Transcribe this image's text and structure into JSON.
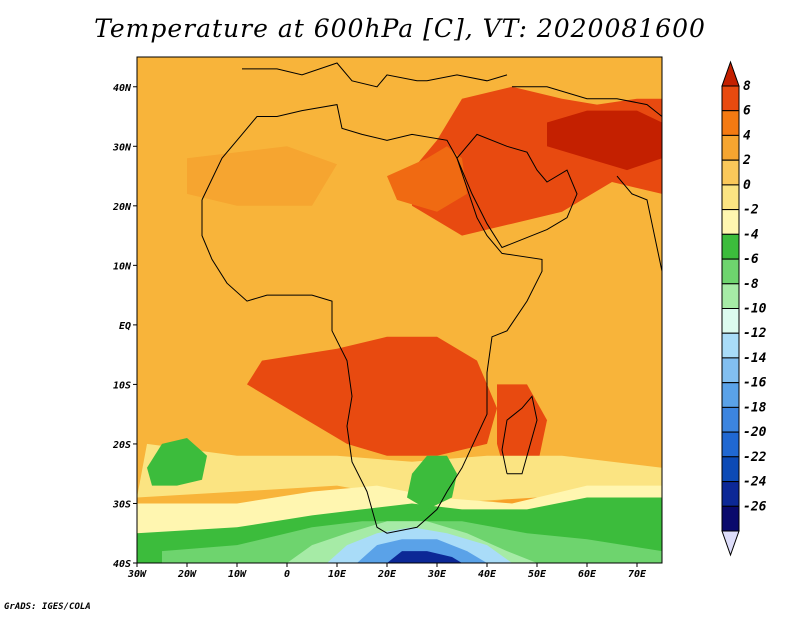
{
  "title": "Temperature at 600hPa [C], VT: 2020081600",
  "credit": "GrADS: IGES/COLA",
  "chart_data": {
    "type": "heatmap",
    "variable": "Temperature",
    "level": "600hPa",
    "units": "C",
    "valid_time": "2020081600",
    "xlim": [
      -30,
      75
    ],
    "ylim": [
      -40,
      45
    ],
    "x_ticks": [
      {
        "value": -30,
        "label": "30W"
      },
      {
        "value": -20,
        "label": "20W"
      },
      {
        "value": -10,
        "label": "10W"
      },
      {
        "value": 0,
        "label": "0"
      },
      {
        "value": 10,
        "label": "10E"
      },
      {
        "value": 20,
        "label": "20E"
      },
      {
        "value": 30,
        "label": "30E"
      },
      {
        "value": 40,
        "label": "40E"
      },
      {
        "value": 50,
        "label": "50E"
      },
      {
        "value": 60,
        "label": "60E"
      },
      {
        "value": 70,
        "label": "70E"
      }
    ],
    "y_ticks": [
      {
        "value": 40,
        "label": "40N"
      },
      {
        "value": 30,
        "label": "30N"
      },
      {
        "value": 20,
        "label": "20N"
      },
      {
        "value": 10,
        "label": "10N"
      },
      {
        "value": 0,
        "label": "EQ"
      },
      {
        "value": -10,
        "label": "10S"
      },
      {
        "value": -20,
        "label": "20S"
      },
      {
        "value": -30,
        "label": "30S"
      },
      {
        "value": -40,
        "label": "40S"
      }
    ],
    "colorbar": {
      "labels": [
        "8",
        "6",
        "4",
        "2",
        "0",
        "-2",
        "-4",
        "-6",
        "-8",
        "-10",
        "-12",
        "-14",
        "-16",
        "-18",
        "-20",
        "-22",
        "-24",
        "-26"
      ],
      "colors": [
        "#c42000",
        "#e84a10",
        "#f47a12",
        "#f6a530",
        "#fac85a",
        "#fbe482",
        "#fff6b0",
        "#3cbc3c",
        "#6ed46e",
        "#a6eba6",
        "#dcfbef",
        "#a9dcf8",
        "#82bff0",
        "#5aa2e8",
        "#3c85e0",
        "#2068d2",
        "#0c4ab6",
        "#0c2896",
        "#0a0a6c",
        "#ddddfa"
      ]
    },
    "regions": [
      {
        "name": "background-warm",
        "value": 3,
        "polygon": [
          [
            -30,
            45
          ],
          [
            75,
            45
          ],
          [
            75,
            -29
          ],
          [
            55,
            -27
          ],
          [
            40,
            -30
          ],
          [
            30,
            -31
          ],
          [
            20,
            -29
          ],
          [
            10,
            -29
          ],
          [
            -5,
            -32
          ],
          [
            -30,
            -33
          ]
        ]
      },
      {
        "name": "northeast-hot",
        "value": 6,
        "polygon": [
          [
            35,
            38
          ],
          [
            45,
            40
          ],
          [
            55,
            38
          ],
          [
            62,
            37
          ],
          [
            70,
            38
          ],
          [
            75,
            38
          ],
          [
            75,
            22
          ],
          [
            65,
            24
          ],
          [
            55,
            19
          ],
          [
            45,
            17
          ],
          [
            35,
            15
          ],
          [
            25,
            20
          ],
          [
            25,
            26
          ],
          [
            30,
            31
          ],
          [
            35,
            38
          ]
        ]
      },
      {
        "name": "northeast-core",
        "value": 7,
        "polygon": [
          [
            52,
            34
          ],
          [
            60,
            36
          ],
          [
            70,
            36
          ],
          [
            75,
            34
          ],
          [
            75,
            28
          ],
          [
            68,
            26
          ],
          [
            60,
            28
          ],
          [
            52,
            30
          ]
        ]
      },
      {
        "name": "sahara-warm",
        "value": 5,
        "polygon": [
          [
            20,
            25
          ],
          [
            28,
            28
          ],
          [
            32,
            30
          ],
          [
            35,
            28
          ],
          [
            36,
            22
          ],
          [
            30,
            19
          ],
          [
            22,
            21
          ]
        ]
      },
      {
        "name": "west-africa-warm",
        "value": 4,
        "polygon": [
          [
            -20,
            28
          ],
          [
            0,
            30
          ],
          [
            10,
            27
          ],
          [
            5,
            20
          ],
          [
            -10,
            20
          ],
          [
            -20,
            22
          ]
        ]
      },
      {
        "name": "south-central-hot",
        "value": 6,
        "polygon": [
          [
            -5,
            -6
          ],
          [
            10,
            -4
          ],
          [
            20,
            -2
          ],
          [
            30,
            -2
          ],
          [
            38,
            -6
          ],
          [
            42,
            -14
          ],
          [
            40,
            -20
          ],
          [
            30,
            -22
          ],
          [
            20,
            -22
          ],
          [
            12,
            -20
          ],
          [
            0,
            -14
          ],
          [
            -8,
            -10
          ]
        ]
      },
      {
        "name": "madagascar-hot",
        "value": 6,
        "polygon": [
          [
            42,
            -10
          ],
          [
            48,
            -10
          ],
          [
            52,
            -16
          ],
          [
            50,
            -24
          ],
          [
            44,
            -26
          ],
          [
            42,
            -20
          ]
        ]
      },
      {
        "name": "southern-mild",
        "value": -1,
        "polygon": [
          [
            -28,
            -20
          ],
          [
            -10,
            -22
          ],
          [
            10,
            -22
          ],
          [
            25,
            -23
          ],
          [
            40,
            -22
          ],
          [
            55,
            -22
          ],
          [
            75,
            -24
          ],
          [
            75,
            -30
          ],
          [
            50,
            -29
          ],
          [
            30,
            -30
          ],
          [
            10,
            -27
          ],
          [
            -10,
            -28
          ],
          [
            -30,
            -29
          ]
        ]
      },
      {
        "name": "south-cool",
        "value": -3,
        "polygon": [
          [
            -30,
            -30
          ],
          [
            -10,
            -30
          ],
          [
            5,
            -28
          ],
          [
            18,
            -27
          ],
          [
            30,
            -29
          ],
          [
            45,
            -30
          ],
          [
            60,
            -27
          ],
          [
            75,
            -27
          ],
          [
            75,
            -34
          ],
          [
            60,
            -33
          ],
          [
            45,
            -34
          ],
          [
            30,
            -33
          ],
          [
            20,
            -33
          ],
          [
            5,
            -34
          ],
          [
            -10,
            -35
          ],
          [
            -30,
            -35
          ]
        ]
      },
      {
        "name": "south-green",
        "value": -6,
        "polygon": [
          [
            -30,
            -35
          ],
          [
            -10,
            -34
          ],
          [
            5,
            -32
          ],
          [
            15,
            -31
          ],
          [
            25,
            -30
          ],
          [
            35,
            -31
          ],
          [
            48,
            -31
          ],
          [
            60,
            -29
          ],
          [
            75,
            -29
          ],
          [
            75,
            -40
          ],
          [
            -30,
            -40
          ]
        ]
      },
      {
        "name": "south-lightgreen",
        "value": -8,
        "polygon": [
          [
            -25,
            -38
          ],
          [
            -10,
            -37
          ],
          [
            5,
            -34
          ],
          [
            15,
            -33
          ],
          [
            25,
            -33
          ],
          [
            35,
            -33
          ],
          [
            48,
            -35
          ],
          [
            60,
            -36
          ],
          [
            75,
            -38
          ],
          [
            75,
            -40
          ],
          [
            -25,
            -40
          ]
        ]
      },
      {
        "name": "south-pale",
        "value": -10,
        "polygon": [
          [
            0,
            -40
          ],
          [
            5,
            -37
          ],
          [
            12,
            -35
          ],
          [
            20,
            -33
          ],
          [
            28,
            -33
          ],
          [
            36,
            -35
          ],
          [
            44,
            -38
          ],
          [
            50,
            -40
          ]
        ]
      },
      {
        "name": "south-lightblue",
        "value": -13,
        "polygon": [
          [
            8,
            -40
          ],
          [
            12,
            -37
          ],
          [
            18,
            -35
          ],
          [
            25,
            -34
          ],
          [
            32,
            -35
          ],
          [
            40,
            -37
          ],
          [
            45,
            -40
          ]
        ]
      },
      {
        "name": "south-blue",
        "value": -17,
        "polygon": [
          [
            14,
            -40
          ],
          [
            18,
            -37
          ],
          [
            23,
            -36
          ],
          [
            30,
            -36
          ],
          [
            36,
            -38
          ],
          [
            40,
            -40
          ]
        ]
      },
      {
        "name": "south-deepblue",
        "value": -22,
        "polygon": [
          [
            20,
            -40
          ],
          [
            23,
            -38
          ],
          [
            28,
            -38
          ],
          [
            33,
            -39
          ],
          [
            35,
            -40
          ]
        ]
      },
      {
        "name": "southatlantic-green-blob",
        "value": -5,
        "polygon": [
          [
            -28,
            -24
          ],
          [
            -25,
            -20
          ],
          [
            -20,
            -19
          ],
          [
            -16,
            -22
          ],
          [
            -17,
            -26
          ],
          [
            -22,
            -27
          ],
          [
            -27,
            -27
          ]
        ]
      },
      {
        "name": "south-africa-green-blob",
        "value": -5,
        "polygon": [
          [
            25,
            -25
          ],
          [
            28,
            -22
          ],
          [
            32,
            -22
          ],
          [
            34,
            -25
          ],
          [
            33,
            -29
          ],
          [
            28,
            -31
          ],
          [
            24,
            -29
          ]
        ]
      }
    ],
    "boundaries": [
      {
        "name": "africa-coast",
        "path": [
          [
            -17,
            21
          ],
          [
            -13,
            28
          ],
          [
            -9,
            32
          ],
          [
            -6,
            35
          ],
          [
            -2,
            35
          ],
          [
            3,
            36
          ],
          [
            10,
            37
          ],
          [
            11,
            33
          ],
          [
            15,
            32
          ],
          [
            20,
            31
          ],
          [
            25,
            32
          ],
          [
            32,
            31
          ],
          [
            34,
            28
          ],
          [
            36,
            23
          ],
          [
            38,
            18
          ],
          [
            40,
            15
          ],
          [
            43,
            12
          ],
          [
            51,
            11
          ],
          [
            51,
            9
          ],
          [
            48,
            4
          ],
          [
            44,
            -1
          ],
          [
            41,
            -2
          ],
          [
            40,
            -8
          ],
          [
            40,
            -15
          ],
          [
            35,
            -24
          ],
          [
            32,
            -28
          ],
          [
            30,
            -31
          ],
          [
            26,
            -34
          ],
          [
            20,
            -35
          ],
          [
            18,
            -34
          ],
          [
            16,
            -28
          ],
          [
            13,
            -23
          ],
          [
            12,
            -17
          ],
          [
            13,
            -12
          ],
          [
            12,
            -6
          ],
          [
            9,
            -1
          ],
          [
            9,
            4
          ],
          [
            5,
            5
          ],
          [
            0,
            5
          ],
          [
            -4,
            5
          ],
          [
            -8,
            4
          ],
          [
            -12,
            7
          ],
          [
            -15,
            11
          ],
          [
            -17,
            15
          ],
          [
            -17,
            21
          ]
        ]
      },
      {
        "name": "madagascar",
        "path": [
          [
            44,
            -25
          ],
          [
            47,
            -25
          ],
          [
            50,
            -16
          ],
          [
            49,
            -12
          ],
          [
            47,
            -14
          ],
          [
            44,
            -16
          ],
          [
            43,
            -21
          ],
          [
            44,
            -25
          ]
        ]
      },
      {
        "name": "arabia",
        "path": [
          [
            34,
            28
          ],
          [
            35,
            29
          ],
          [
            38,
            32
          ],
          [
            44,
            30
          ],
          [
            48,
            29
          ],
          [
            50,
            26
          ],
          [
            52,
            24
          ],
          [
            56,
            26
          ],
          [
            58,
            22
          ],
          [
            56,
            18
          ],
          [
            52,
            16
          ],
          [
            43,
            13
          ],
          [
            40,
            17
          ],
          [
            37,
            22
          ],
          [
            34,
            28
          ]
        ]
      },
      {
        "name": "iran-asia",
        "path": [
          [
            45,
            40
          ],
          [
            52,
            40
          ],
          [
            60,
            38
          ],
          [
            66,
            38
          ],
          [
            72,
            37
          ],
          [
            75,
            35
          ],
          [
            75,
            45
          ]
        ]
      },
      {
        "name": "europe-south",
        "path": [
          [
            -9,
            43
          ],
          [
            -2,
            43
          ],
          [
            3,
            42
          ],
          [
            10,
            44
          ],
          [
            13,
            41
          ],
          [
            18,
            40
          ],
          [
            20,
            42
          ],
          [
            26,
            41
          ],
          [
            28,
            41
          ],
          [
            34,
            42
          ],
          [
            40,
            41
          ],
          [
            44,
            42
          ]
        ]
      },
      {
        "name": "india-west",
        "path": [
          [
            66,
            25
          ],
          [
            69,
            22
          ],
          [
            72,
            21
          ],
          [
            73,
            17
          ],
          [
            74,
            13
          ],
          [
            75,
            9
          ]
        ]
      }
    ]
  }
}
